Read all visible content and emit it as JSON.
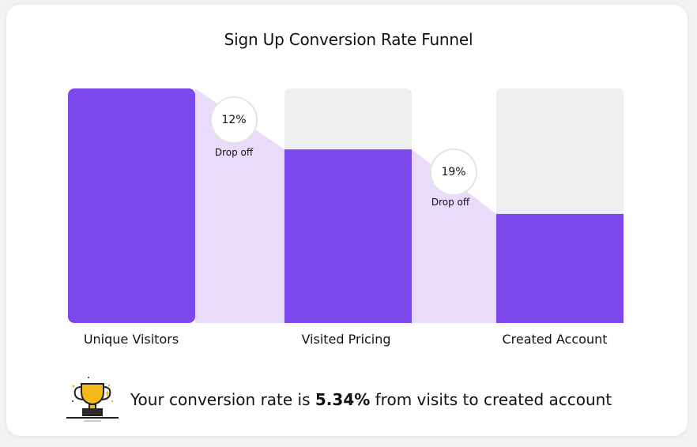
{
  "chart_data": {
    "type": "funnel",
    "title": "Sign Up Conversion Rate Funnel",
    "categories": [
      "Unique Visitors",
      "Visited Pricing",
      "Created Account"
    ],
    "values_relative": [
      1.0,
      0.74,
      0.465
    ],
    "drop_offs": [
      {
        "value": "12%",
        "label": "Drop off"
      },
      {
        "value": "19%",
        "label": "Drop off"
      }
    ],
    "colors": {
      "bar": "#7c48eb",
      "track": "#eeeff1",
      "connector": "#e9dbfb"
    }
  },
  "footer": {
    "prefix": "Your conversion rate is ",
    "rate": "5.34%",
    "suffix": " from visits to created account"
  },
  "icons": {
    "trophy": "trophy-icon"
  }
}
